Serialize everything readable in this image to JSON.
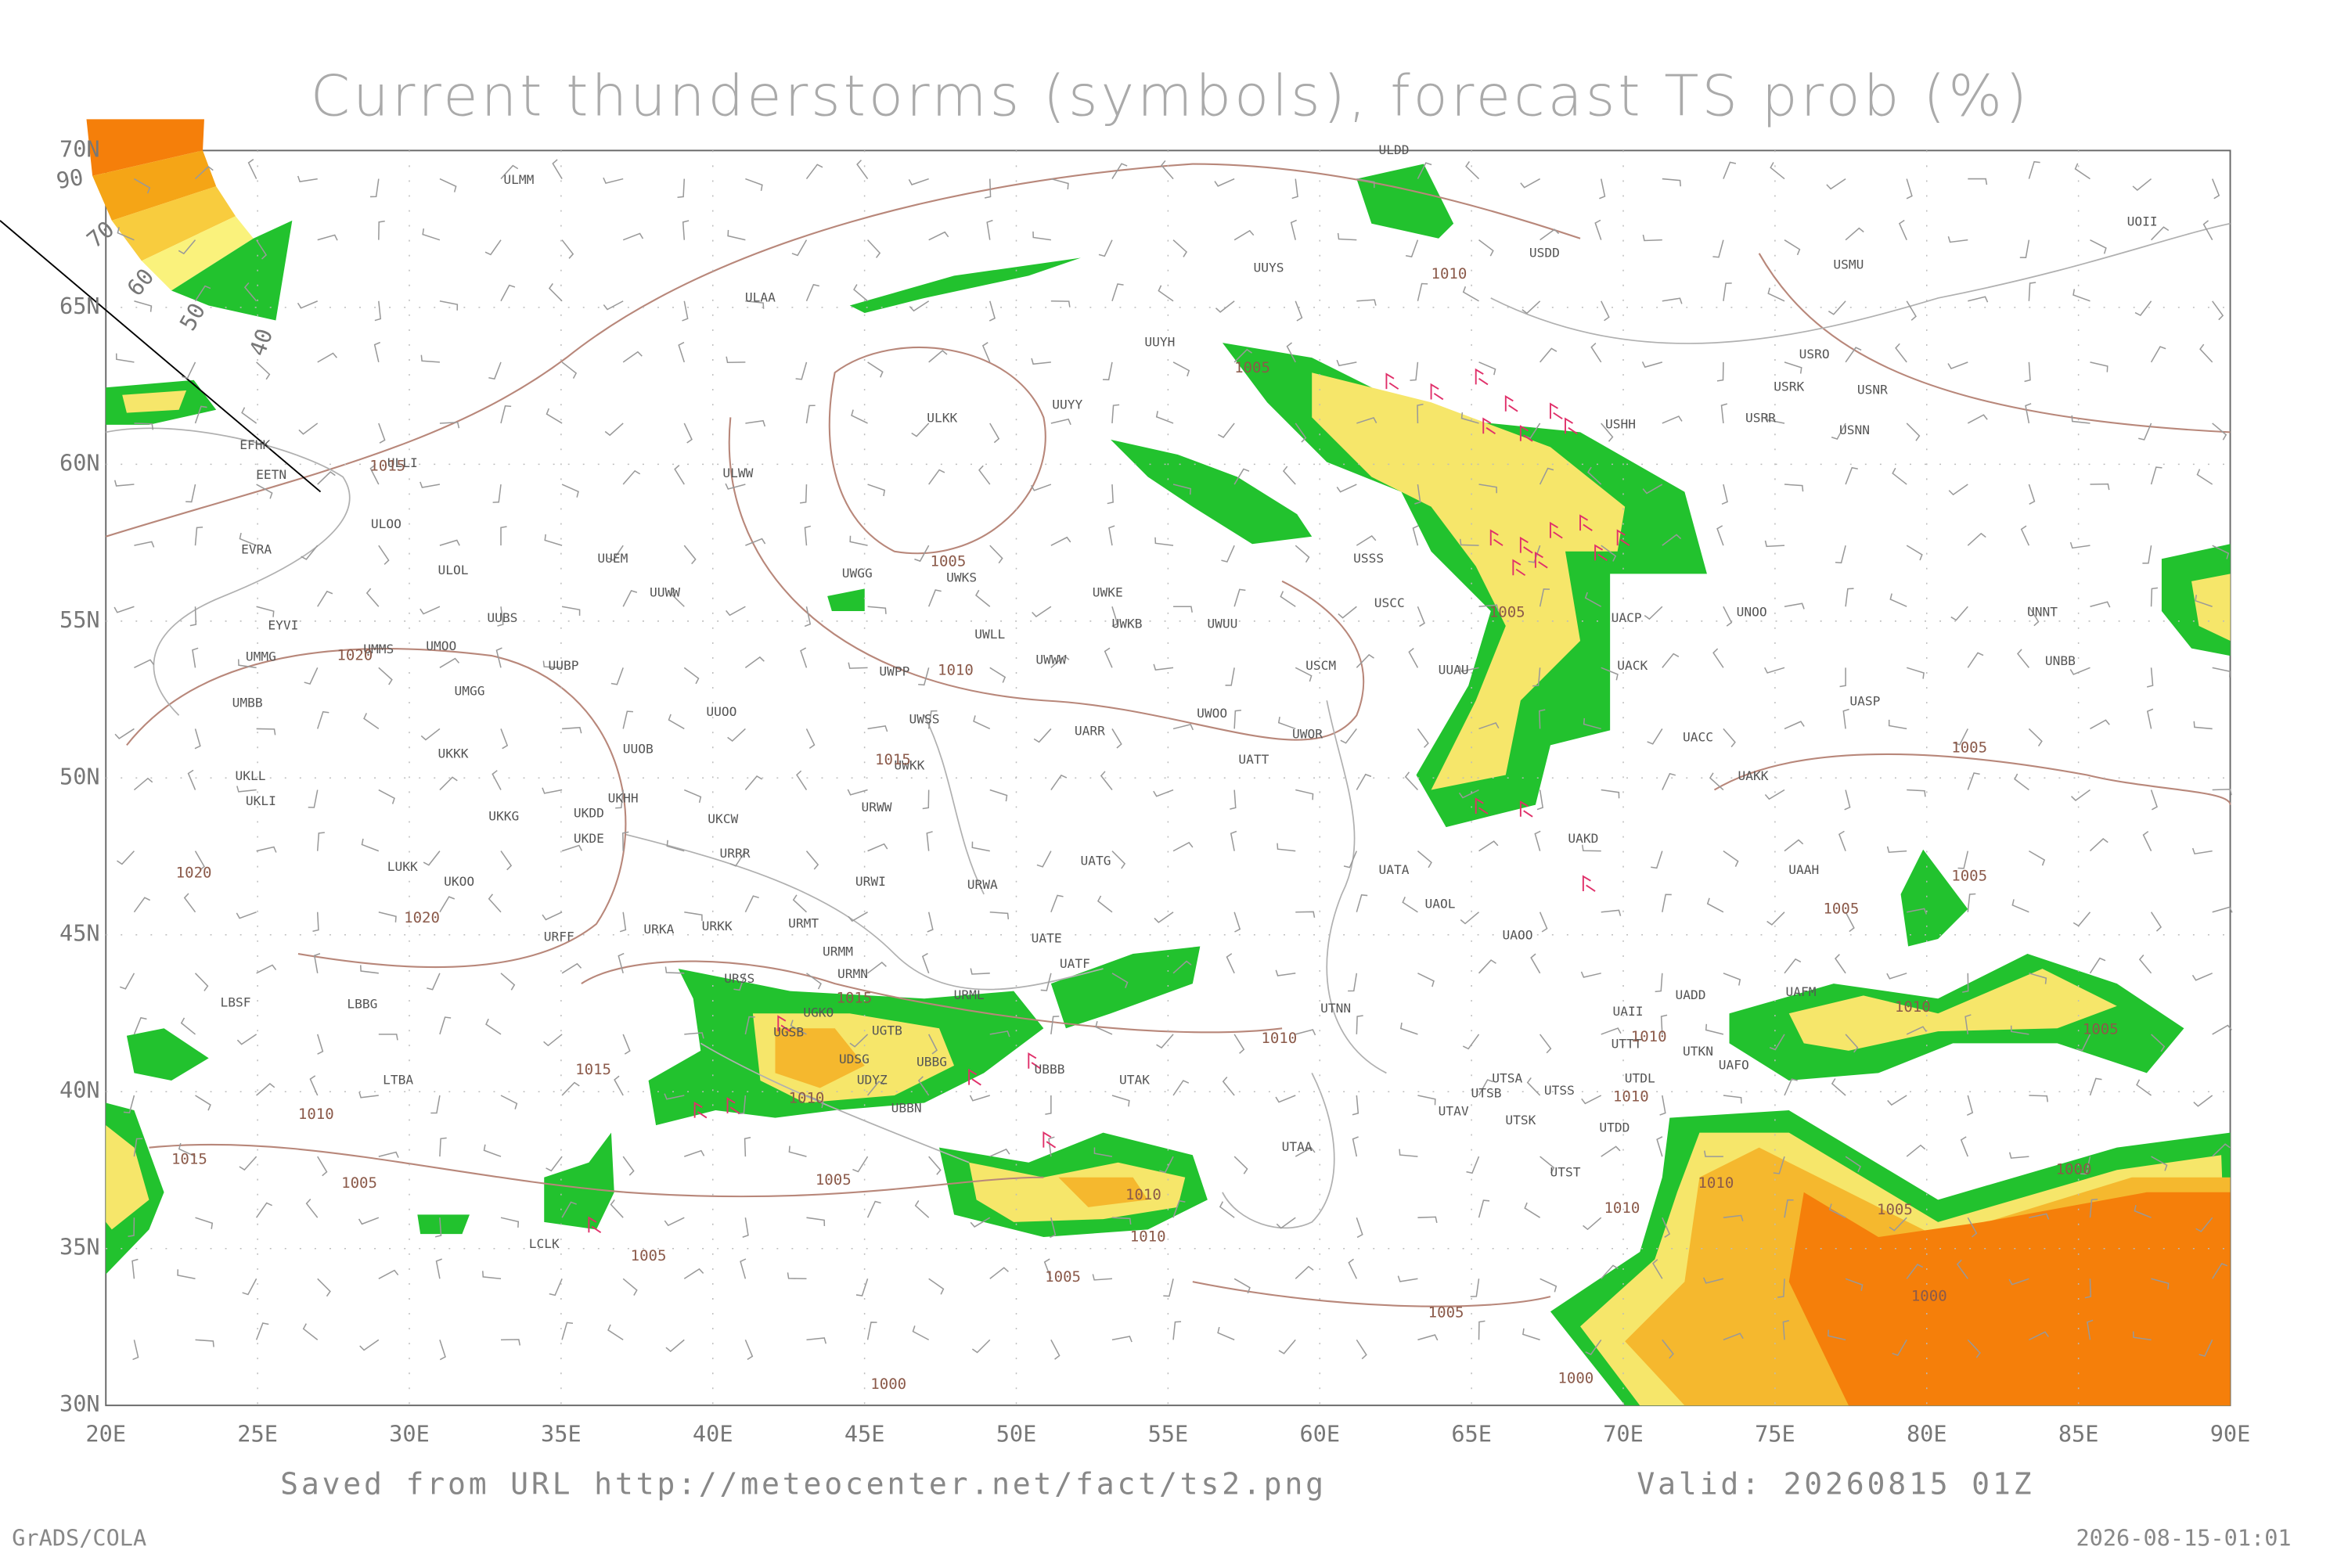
{
  "title": "Current thunderstorms (symbols), forecast TS prob (%)",
  "legend": {
    "levels": [
      90,
      70,
      60,
      50,
      40
    ]
  },
  "axes": {
    "lat_labels": [
      "70N",
      "65N",
      "60N",
      "55N",
      "50N",
      "45N",
      "40N",
      "35N",
      "30N"
    ],
    "lon_labels": [
      "20E",
      "25E",
      "30E",
      "35E",
      "40E",
      "45E",
      "50E",
      "55E",
      "60E",
      "65E",
      "70E",
      "75E",
      "80E",
      "85E",
      "90E"
    ]
  },
  "stations": [
    "ULMM",
    "ULDD",
    "USDD",
    "UOII",
    "UUYS",
    "USMU",
    "ULAA",
    "UUYH",
    "USRO",
    "USRK",
    "USNR",
    "UUYY",
    "ULKK",
    "USHH",
    "USRR",
    "USNN",
    "EFHK",
    "EETN",
    "ULLI",
    "ULWW",
    "ULOO",
    "EVRA",
    "ULOL",
    "UUEM",
    "UWGG",
    "UWKS",
    "USSS",
    "UWKE",
    "UUWW",
    "USCC",
    "UNOO",
    "UNNT",
    "EYVI",
    "UUBS",
    "UWKB",
    "UWUU",
    "UACP",
    "UMMG",
    "UMMS",
    "UMOO",
    "UWLL",
    "UWWW",
    "USCM",
    "UUBP",
    "UUAU",
    "UACK",
    "UNBB",
    "UWPP",
    "UMBB",
    "UMGG",
    "UASP",
    "UUOO",
    "UUOB",
    "UWSS",
    "UWOO",
    "UARR",
    "UWOR",
    "UACC",
    "UKKK",
    "UWKK",
    "UATT",
    "UAKK",
    "UKLL",
    "UKLI",
    "UKHH",
    "UKDD",
    "UKCW",
    "URWW",
    "UKKG",
    "UKDE",
    "URRR",
    "UATG",
    "UATA",
    "UAAH",
    "LUKK",
    "UKOO",
    "URWI",
    "URWA",
    "UAKD",
    "UAOL",
    "UAOO",
    "URFF",
    "URKA",
    "URKK",
    "URMT",
    "UATE",
    "URMM",
    "UATF",
    "URSS",
    "URMN",
    "UAFM",
    "UADD",
    "LBSF",
    "LBBG",
    "URML",
    "UGKO",
    "UTNN",
    "UAII",
    "UGSB",
    "UGTB",
    "UTTT",
    "UTKN",
    "UAFO",
    "UDSG",
    "UBBG",
    "UBBB",
    "UDYZ",
    "LTBA",
    "UTAK",
    "UTSA",
    "UTDL",
    "UTSB",
    "UTSS",
    "UBBN",
    "UTAV",
    "UTSK",
    "UTDD",
    "UTAA",
    "UTST",
    "LCLK"
  ],
  "isobar_labels": [
    "1010",
    "1005",
    "1015",
    "1005",
    "1005",
    "1020",
    "1010",
    "1015",
    "1020",
    "1020",
    "1005",
    "1005",
    "1005",
    "1015",
    "1010",
    "1005",
    "1010",
    "1015",
    "1010",
    "1010",
    "1010",
    "1010",
    "1015",
    "1005",
    "1005",
    "1010",
    "1000",
    "1010",
    "1005",
    "1010",
    "1010",
    "1005",
    "1005",
    "1000",
    "1005",
    "1000",
    "1000"
  ],
  "footer": {
    "source": "Saved from URL http://meteocenter.net/fact/ts2.png",
    "valid": "Valid: 20260815 01Z",
    "software": "GrADS/COLA",
    "timestamp": "2026-08-15-01:01"
  }
}
